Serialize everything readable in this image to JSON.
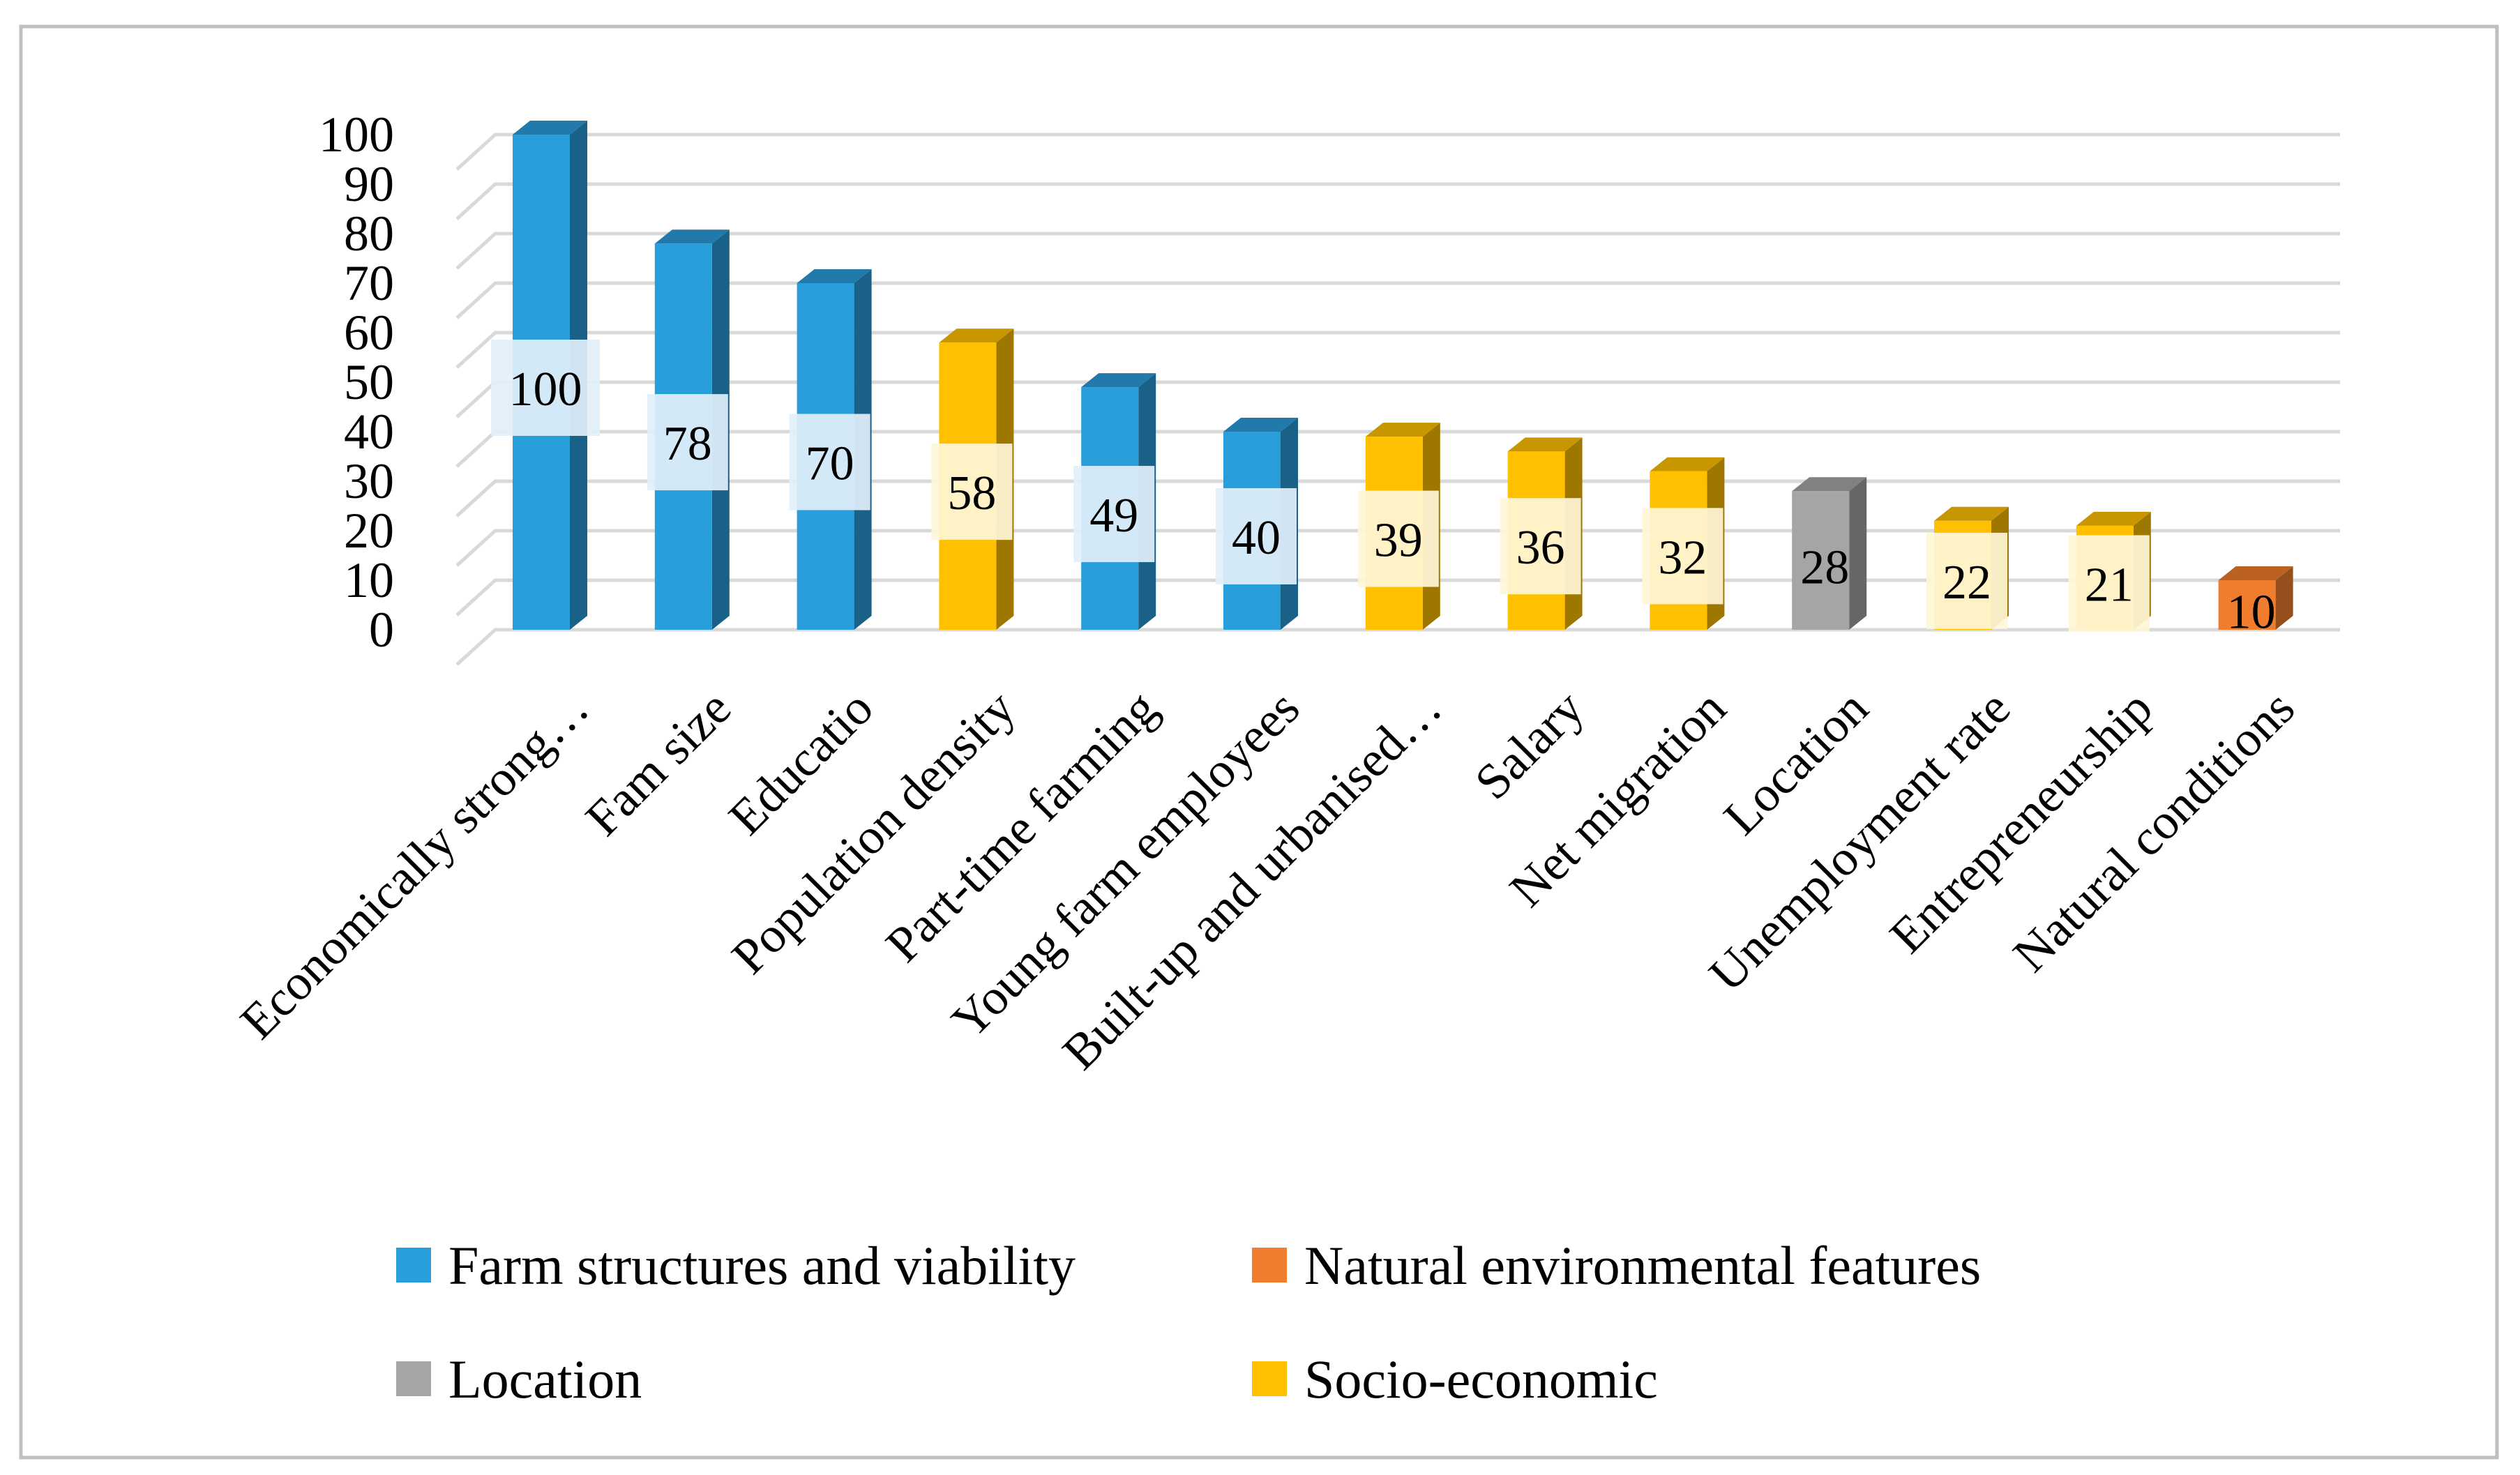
{
  "chart_data": {
    "type": "bar",
    "categories": [
      "Economically strong…",
      "Fam size",
      "Educatio",
      "Population density",
      "Part-time farming",
      "Young farm employees",
      "Built-up and urbanised…",
      "Salary",
      "Net migration",
      "Location",
      "Unemployment rate",
      "Entrepreneurship",
      "Natural conditions"
    ],
    "values": [
      100,
      78,
      70,
      58,
      49,
      40,
      39,
      36,
      32,
      28,
      22,
      21,
      10
    ],
    "value_labels": [
      "100",
      "78",
      "70",
      "58",
      "49",
      "40",
      "39",
      "36",
      "32",
      "28",
      "22",
      "21",
      "10"
    ],
    "bar_groups": [
      "Farm structures and viability",
      "Farm structures and viability",
      "Farm structures and viability",
      "Socio-economic",
      "Farm structures and viability",
      "Farm structures and viability",
      "Socio-economic",
      "Socio-economic",
      "Socio-economic",
      "Location",
      "Socio-economic",
      "Socio-economic",
      "Natural environmental features"
    ],
    "legend": [
      {
        "name": "Farm structures and viability",
        "color": "#2a9ddb"
      },
      {
        "name": "Natural environmental features",
        "color": "#f07d2d"
      },
      {
        "name": "Location",
        "color": "#a5a5a5"
      },
      {
        "name": "Socio-economic",
        "color": "#ffc000"
      }
    ],
    "legend_placement": "bottom",
    "ylim": [
      0,
      100
    ],
    "yticks": [
      "0",
      "10",
      "20",
      "30",
      "40",
      "50",
      "60",
      "70",
      "80",
      "90",
      "100"
    ],
    "grid": true,
    "style": "3d-column",
    "title": "",
    "xlabel": "",
    "ylabel": ""
  }
}
